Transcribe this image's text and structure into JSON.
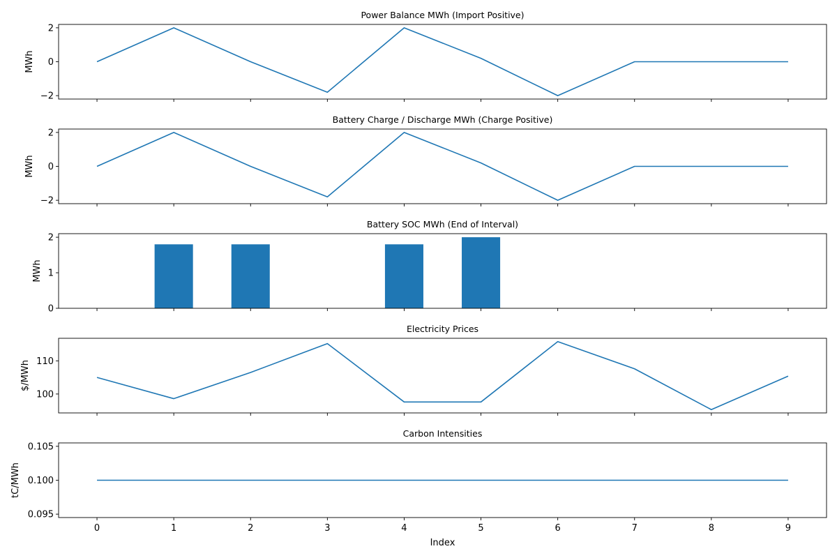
{
  "figure": {
    "xlabel": "Index"
  },
  "chart_data": [
    {
      "type": "line",
      "title": "Power Balance MWh (Import Positive)",
      "xlabel": "",
      "ylabel": "MWh",
      "x": [
        0,
        1,
        2,
        3,
        4,
        5,
        6,
        7,
        8,
        9
      ],
      "series": [
        {
          "values": [
            0,
            2,
            0,
            -1.8,
            2,
            0.2,
            -2,
            0,
            0,
            0
          ],
          "color": "#1f77b4"
        }
      ],
      "xlim": [
        -0.5,
        9.5
      ],
      "ylim": [
        -2.2,
        2.2
      ],
      "yticks": [
        -2,
        0,
        2
      ],
      "yticklabels": [
        "−2",
        "0",
        "2"
      ],
      "grid": false,
      "legend": "none"
    },
    {
      "type": "line",
      "title": "Battery Charge / Discharge MWh (Charge Positive)",
      "xlabel": "",
      "ylabel": "MWh",
      "x": [
        0,
        1,
        2,
        3,
        4,
        5,
        6,
        7,
        8,
        9
      ],
      "series": [
        {
          "values": [
            0,
            2,
            0,
            -1.8,
            2,
            0.2,
            -2,
            0,
            0,
            0
          ],
          "color": "#1f77b4"
        }
      ],
      "xlim": [
        -0.5,
        9.5
      ],
      "ylim": [
        -2.2,
        2.2
      ],
      "yticks": [
        -2,
        0,
        2
      ],
      "yticklabels": [
        "−2",
        "0",
        "2"
      ],
      "grid": false,
      "legend": "none"
    },
    {
      "type": "bar",
      "title": "Battery SOC MWh (End of Interval)",
      "xlabel": "",
      "ylabel": "MWh",
      "x": [
        0,
        1,
        2,
        3,
        4,
        5,
        6,
        7,
        8,
        9
      ],
      "series": [
        {
          "values": [
            0,
            1.8,
            1.8,
            0,
            1.8,
            2.0,
            0,
            0,
            0,
            0
          ],
          "color": "#1f77b4"
        }
      ],
      "xlim": [
        -0.5,
        9.5
      ],
      "ylim": [
        0,
        2.1
      ],
      "yticks": [
        0,
        1,
        2
      ],
      "yticklabels": [
        "0",
        "1",
        "2"
      ],
      "grid": false,
      "legend": "none"
    },
    {
      "type": "line",
      "title": "Electricity Prices",
      "xlabel": "",
      "ylabel": "$/MWh",
      "x": [
        0,
        1,
        2,
        3,
        4,
        5,
        6,
        7,
        8,
        9
      ],
      "series": [
        {
          "values": [
            105,
            98.6,
            106.5,
            115.2,
            97.6,
            97.6,
            115.8,
            107.6,
            95.3,
            105.4
          ],
          "color": "#1f77b4"
        }
      ],
      "xlim": [
        -0.5,
        9.5
      ],
      "ylim": [
        94.3,
        116.8
      ],
      "yticks": [
        100,
        110
      ],
      "yticklabels": [
        "100",
        "110"
      ],
      "grid": false,
      "legend": "none"
    },
    {
      "type": "line",
      "title": "Carbon Intensities",
      "xlabel": "Index",
      "ylabel": "tC/MWh",
      "x": [
        0,
        1,
        2,
        3,
        4,
        5,
        6,
        7,
        8,
        9
      ],
      "series": [
        {
          "values": [
            0.1,
            0.1,
            0.1,
            0.1,
            0.1,
            0.1,
            0.1,
            0.1,
            0.1,
            0.1
          ],
          "color": "#1f77b4"
        }
      ],
      "xlim": [
        -0.5,
        9.5
      ],
      "ylim": [
        0.0945,
        0.1055
      ],
      "yticks": [
        0.095,
        0.1,
        0.105
      ],
      "yticklabels": [
        "0.095",
        "0.100",
        "0.105"
      ],
      "xticks": [
        0,
        1,
        2,
        3,
        4,
        5,
        6,
        7,
        8,
        9
      ],
      "xticklabels": [
        "0",
        "1",
        "2",
        "3",
        "4",
        "5",
        "6",
        "7",
        "8",
        "9"
      ],
      "grid": false,
      "legend": "none"
    }
  ]
}
